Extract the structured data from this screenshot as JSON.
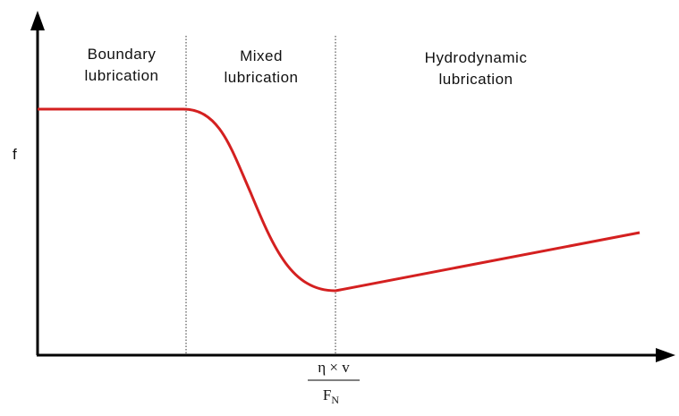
{
  "regions": [
    {
      "lines": [
        "Boundary",
        "lubrication"
      ]
    },
    {
      "lines": [
        "Mixed",
        "lubrication"
      ]
    },
    {
      "lines": [
        "Hydrodynamic",
        "lubrication"
      ]
    }
  ],
  "y_axis_label": "f",
  "x_axis_label": {
    "numerator": "η × v",
    "denominator": "F",
    "subscript": "N"
  }
}
